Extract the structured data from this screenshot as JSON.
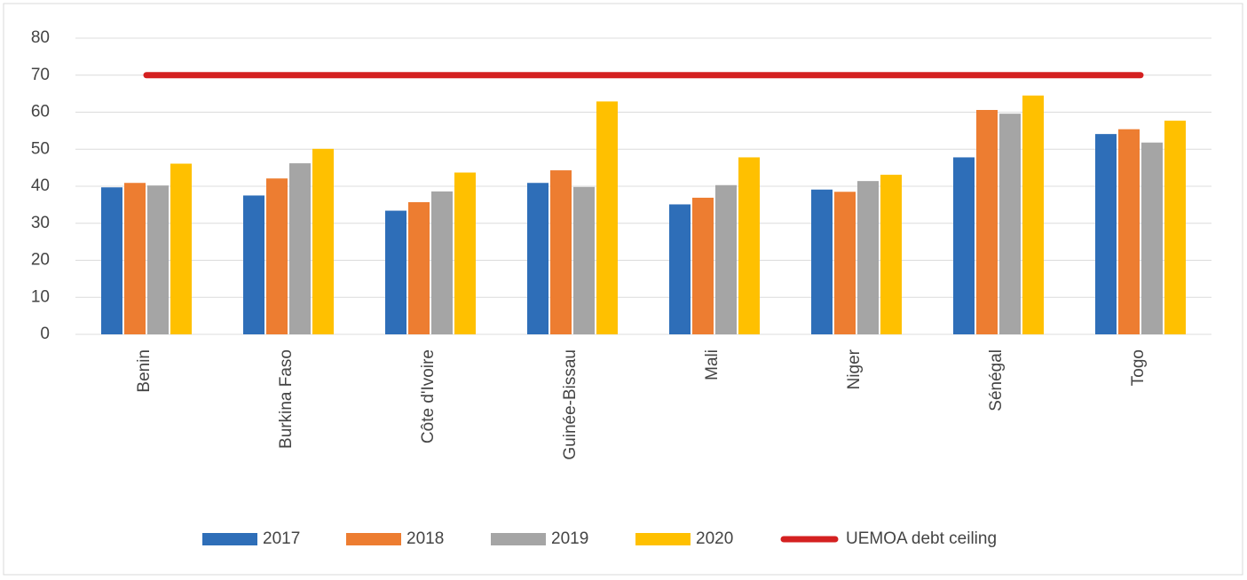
{
  "chart_data": {
    "type": "bar",
    "categories": [
      "Benin",
      "Burkina Faso",
      "Côte d'Ivoire",
      "Guinée-Bissau",
      "Mali",
      "Niger",
      "Sénégal",
      "Togo"
    ],
    "series": [
      {
        "name": "2017",
        "color": "#2e6eb8",
        "values": [
          39.7,
          37.5,
          33.4,
          40.9,
          35.1,
          39.1,
          47.8,
          54.1
        ]
      },
      {
        "name": "2018",
        "color": "#ed7d31",
        "values": [
          40.9,
          42.1,
          35.7,
          44.3,
          36.9,
          38.5,
          60.6,
          55.4
        ]
      },
      {
        "name": "2019",
        "color": "#a5a5a5",
        "values": [
          40.2,
          46.2,
          38.6,
          39.8,
          40.3,
          41.4,
          59.6,
          51.8
        ]
      },
      {
        "name": "2020",
        "color": "#ffc000",
        "values": [
          46.1,
          50.1,
          43.7,
          62.9,
          47.8,
          43.1,
          64.5,
          57.7
        ]
      },
      {
        "name": "UEMOA debt ceiling",
        "type": "line",
        "color": "#d42020",
        "values": [
          70,
          70,
          70,
          70,
          70,
          70,
          70,
          70
        ]
      }
    ],
    "ylim": [
      0,
      80
    ],
    "yticks": [
      0,
      10,
      20,
      30,
      40,
      50,
      60,
      70,
      80
    ],
    "grid": true,
    "legend": "bottom"
  }
}
